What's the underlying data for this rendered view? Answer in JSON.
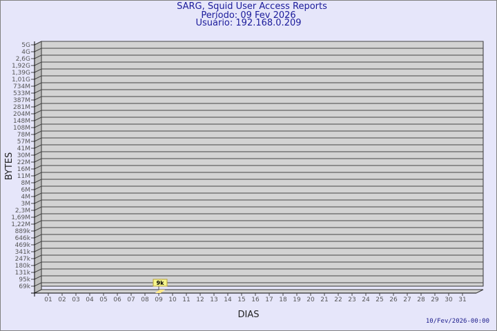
{
  "header": {
    "title": "SARG, Squid User Access Reports",
    "period": "Período: 09 Fev 2026",
    "user": "Usuário: 192.168.0.209"
  },
  "footer": {
    "timestamp": "10/Fev/2026-00:00"
  },
  "chart_data": {
    "type": "bar",
    "xlabel": "DIAS",
    "ylabel": "BYTES",
    "categories": [
      "01",
      "02",
      "03",
      "04",
      "05",
      "06",
      "07",
      "08",
      "09",
      "10",
      "11",
      "12",
      "13",
      "14",
      "15",
      "16",
      "17",
      "18",
      "19",
      "20",
      "21",
      "22",
      "23",
      "24",
      "25",
      "26",
      "27",
      "28",
      "29",
      "30",
      "31"
    ],
    "values": [
      0,
      0,
      0,
      0,
      0,
      0,
      0,
      0,
      9000,
      0,
      0,
      0,
      0,
      0,
      0,
      0,
      0,
      0,
      0,
      0,
      0,
      0,
      0,
      0,
      0,
      0,
      0,
      0,
      0,
      0,
      0
    ],
    "data_labels": {
      "09": "9k"
    },
    "y_tick_labels": [
      "5G",
      "4G",
      "2,6G",
      "1,92G",
      "1,39G",
      "1,01G",
      "734M",
      "533M",
      "387M",
      "281M",
      "204M",
      "148M",
      "108M",
      "78M",
      "57M",
      "41M",
      "30M",
      "22M",
      "16M",
      "11M",
      "8M",
      "6M",
      "4M",
      "3M",
      "2,3M",
      "1,69M",
      "1,22M",
      "889k",
      "646k",
      "469k",
      "341k",
      "247k",
      "180k",
      "131k",
      "95k",
      "69k"
    ],
    "grid": true,
    "style": "3d",
    "colors": {
      "background": "#e6e6fa",
      "plot": "#d3d3d3",
      "side": "#bebebe",
      "bar": "#ffe88a",
      "label_box": "#f5f58c",
      "title": "#1a1a9a"
    }
  }
}
